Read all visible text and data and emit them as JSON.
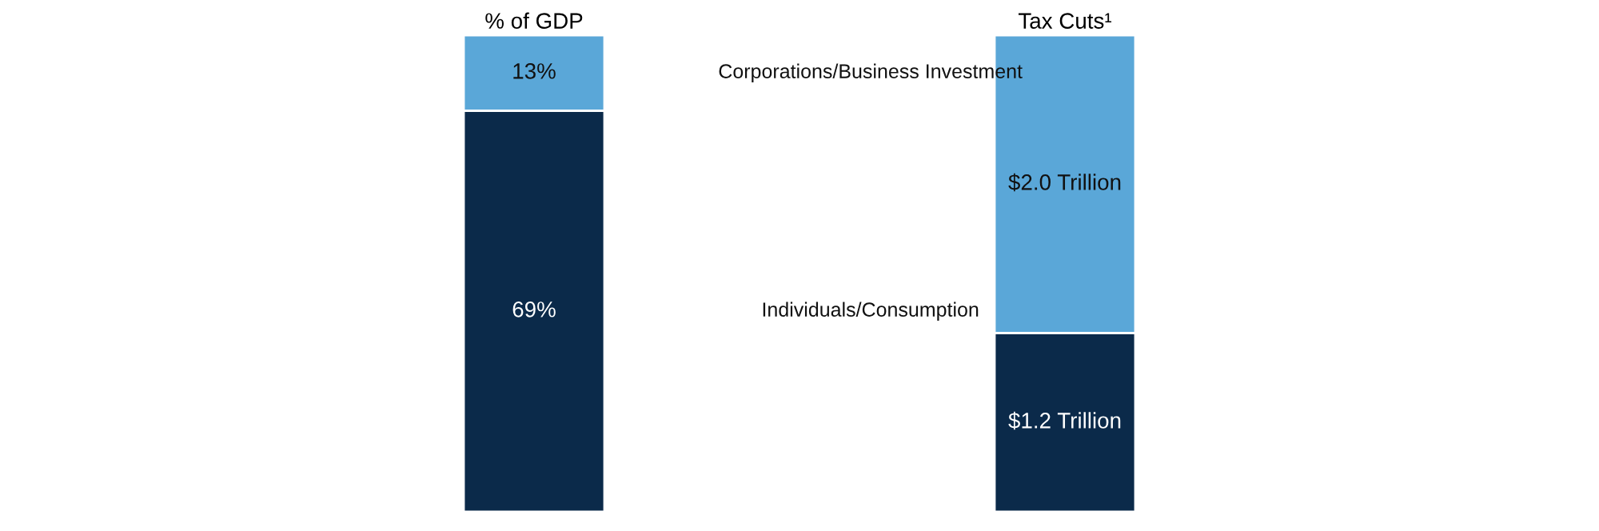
{
  "chart_data": [
    {
      "type": "bar",
      "stacked": true,
      "title": "% of GDP",
      "categories": [
        null
      ],
      "ylim": [
        0,
        82
      ],
      "tick_labels": false,
      "legend": false,
      "series": [
        {
          "name": "Individuals/Consumption",
          "color": "#0b2a4a",
          "values": [
            69
          ],
          "value_labels": [
            "69%"
          ]
        },
        {
          "name": "Corporations/Business Investment",
          "color": "#5aa7d8",
          "values": [
            13
          ],
          "value_labels": [
            "13%"
          ]
        }
      ]
    },
    {
      "type": "bar",
      "stacked": true,
      "title": "Tax Cuts¹",
      "categories": [
        null
      ],
      "ylim": [
        0,
        3.2
      ],
      "tick_labels": false,
      "legend": false,
      "series": [
        {
          "color": "#0b2a4a",
          "values": [
            1.2
          ],
          "value_labels": [
            "$1.2 Trillion"
          ]
        },
        {
          "color": "#5aa7d8",
          "values": [
            2.0
          ],
          "value_labels": [
            "$2.0 Trillion"
          ]
        }
      ]
    }
  ]
}
